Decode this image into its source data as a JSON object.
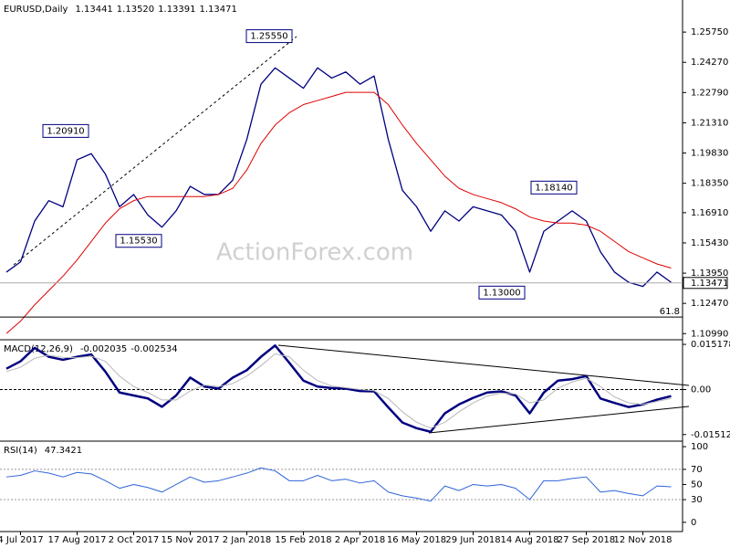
{
  "chart_data": [
    {
      "type": "line",
      "title": "EURUSD,Daily",
      "ohlc": [
        1.13441,
        {
          "value": 1.1352,
          "label": "1.13520"
        },
        1.13391,
        1.13471
      ],
      "watermark": "ActionForex.com",
      "series": [
        {
          "color": "#000080",
          "values": [
            1.14,
            1.145,
            1.165,
            1.175,
            1.172,
            1.195,
            1.198,
            1.188,
            1.172,
            1.178,
            1.168,
            1.162,
            1.17,
            1.182,
            1.178,
            1.178,
            1.185,
            1.205,
            1.232,
            1.24,
            1.235,
            1.23,
            1.24,
            1.235,
            1.238,
            1.232,
            1.236,
            1.205,
            1.18,
            1.172,
            1.16,
            1.17,
            1.165,
            1.172,
            1.17,
            1.168,
            1.16,
            1.14,
            1.16,
            1.165,
            1.17,
            1.165,
            1.15,
            1.14,
            1.135,
            1.133,
            1.14,
            1.135
          ]
        },
        {
          "color": "#e00000",
          "values": [
            1.11,
            1.116,
            1.124,
            1.131,
            1.138,
            1.146,
            1.155,
            1.164,
            1.171,
            1.175,
            1.177,
            1.177,
            1.177,
            1.177,
            1.177,
            1.178,
            1.181,
            1.19,
            1.203,
            1.212,
            1.218,
            1.222,
            1.224,
            1.226,
            1.228,
            1.228,
            1.228,
            1.222,
            1.212,
            1.203,
            1.195,
            1.187,
            1.181,
            1.178,
            1.176,
            1.174,
            1.171,
            1.167,
            1.165,
            1.164,
            1.164,
            1.163,
            1.16,
            1.155,
            1.15,
            1.147,
            1.144,
            1.142
          ]
        }
      ],
      "annotations": [
        {
          "value": 1.2555,
          "label": "1.25550"
        },
        {
          "value": 1.2091,
          "label": "1.20910"
        },
        {
          "value": 1.1553,
          "label": "1.15530"
        },
        {
          "value": 1.13,
          "label": "1.13000"
        },
        {
          "value": 1.1814,
          "label": "1.18140"
        }
      ],
      "last": {
        "value": 1.13471,
        "label": "1.13471"
      },
      "fib": {
        "value": 1.118,
        "label": "61.8"
      },
      "ylim": [
        1.1069,
        1.2732
      ],
      "yticks": [
        {
          "value": 1.2575,
          "label": "1.25750"
        },
        {
          "value": 1.2427,
          "label": "1.24270"
        },
        {
          "value": 1.2279,
          "label": "1.22790"
        },
        {
          "value": 1.2131,
          "label": "1.21310"
        },
        {
          "value": 1.1983,
          "label": "1.19830"
        },
        {
          "value": 1.1835,
          "label": "1.18350"
        },
        {
          "value": 1.1691,
          "label": "1.16910"
        },
        {
          "value": 1.1543,
          "label": "1.15430"
        },
        {
          "value": 1.1395,
          "label": "1.13950"
        },
        {
          "value": 1.1247,
          "label": "1.12470"
        },
        {
          "value": 1.1099,
          "label": "1.10990"
        }
      ]
    },
    {
      "type": "line",
      "title": "MACD(12,26,9)",
      "readout": [
        -0.002035,
        -0.002534
      ],
      "series": [
        {
          "color": "#000080",
          "values": [
            0.007,
            0.0095,
            0.014,
            0.011,
            0.01,
            0.011,
            0.0118,
            0.006,
            -0.001,
            -0.002,
            -0.003,
            -0.0058,
            -0.002,
            0.004,
            0.001,
            0.0003,
            0.004,
            0.0065,
            0.011,
            0.0148,
            0.009,
            0.003,
            0.001,
            0.0005,
            0.0003,
            -0.0005,
            -0.0006,
            -0.006,
            -0.0111,
            -0.013,
            -0.0142,
            -0.008,
            -0.005,
            -0.0028,
            -0.001,
            -0.0006,
            -0.002,
            -0.008,
            -0.001,
            0.003,
            0.0035,
            0.0045,
            -0.003,
            -0.0045,
            -0.0059,
            -0.005,
            -0.0034,
            -0.0022
          ]
        },
        {
          "color": "#b8b8b8",
          "values": [
            0.006,
            0.0075,
            0.0105,
            0.0115,
            0.0108,
            0.0107,
            0.0112,
            0.0095,
            0.0045,
            0.001,
            -0.001,
            -0.0035,
            -0.0035,
            -0.0005,
            0.0015,
            0.001,
            0.002,
            0.0045,
            0.008,
            0.012,
            0.011,
            0.0065,
            0.003,
            0.0012,
            0.0006,
            0.0,
            -0.0004,
            -0.003,
            -0.0075,
            -0.011,
            -0.013,
            -0.011,
            -0.0075,
            -0.0045,
            -0.0022,
            -0.0012,
            -0.0015,
            -0.0045,
            -0.0035,
            0.0005,
            0.0025,
            0.0038,
            0.001,
            -0.0025,
            -0.0045,
            -0.005,
            -0.004,
            -0.003
          ]
        }
      ],
      "ylim": [
        -0.01735,
        0.01673
      ],
      "yticks": [
        0.015178,
        {
          "value": 0,
          "label": "0.00"
        },
        -0.015126
      ]
    },
    {
      "type": "line",
      "title": "RSI(14)",
      "readout": [
        47.3421
      ],
      "categories": [
        null,
        "4 Jul 2017",
        null,
        null,
        null,
        "17 Aug 2017",
        null,
        null,
        null,
        "2 Oct 2017",
        null,
        null,
        null,
        "15 Nov 2017",
        null,
        null,
        null,
        "2 Jan 2018",
        null,
        null,
        null,
        "15 Feb 2018",
        null,
        null,
        null,
        "2 Apr 2018",
        null,
        null,
        null,
        "16 May 2018",
        null,
        null,
        null,
        "29 Jun 2018",
        null,
        null,
        null,
        "14 Aug 2018",
        null,
        null,
        null,
        "27 Sep 2018",
        null,
        null,
        null,
        "12 Nov 2018",
        null,
        null
      ],
      "series": [
        {
          "color": "#2f64d8",
          "values": [
            60,
            62,
            68,
            65,
            60,
            66,
            64,
            55,
            45,
            50,
            46,
            40,
            50,
            60,
            53,
            55,
            60,
            65,
            72,
            68,
            55,
            55,
            62,
            55,
            57,
            52,
            55,
            40,
            35,
            32,
            28,
            48,
            42,
            50,
            48,
            50,
            45,
            30,
            55,
            55,
            58,
            60,
            40,
            42,
            38,
            35,
            48,
            47
          ]
        }
      ],
      "levels": [
        70,
        30
      ],
      "ylim": [
        -12.2,
        107.3
      ],
      "yticks": [
        100,
        70,
        50,
        30,
        0
      ]
    }
  ]
}
